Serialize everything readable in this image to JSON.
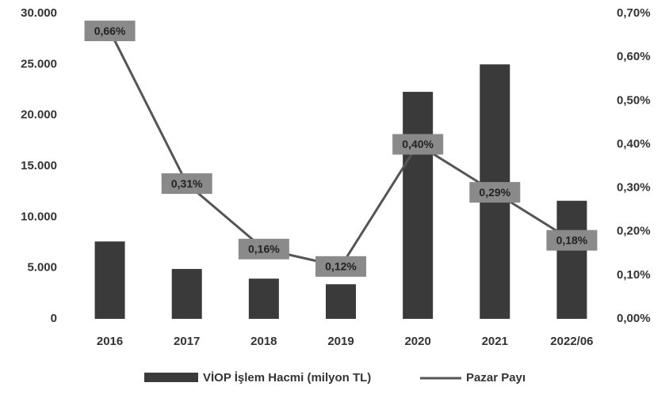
{
  "chart_data": {
    "type": "bar_line",
    "categories": [
      "2016",
      "2017",
      "2018",
      "2019",
      "2020",
      "2021",
      "2022/06"
    ],
    "series": [
      {
        "name": "VİOP İşlem Hacmi (milyon TL)",
        "color": "#3a3a3a",
        "type": "bar",
        "axis": "y",
        "values": [
          7600,
          4900,
          3950,
          3400,
          22300,
          25000,
          11600
        ]
      },
      {
        "name": "Pazar Payı",
        "color": "#555555",
        "type": "line",
        "axis": "y2",
        "values": [
          0.66,
          0.31,
          0.16,
          0.12,
          0.4,
          0.29,
          0.18
        ],
        "value_labels": [
          "0,66%",
          "0,31%",
          "0,16%",
          "0,12%",
          "0,40%",
          "0,29%",
          "0,18%"
        ]
      }
    ],
    "ylim": [
      0,
      30000
    ],
    "yticks": [
      0,
      {
        "value": 5000,
        "label": "5.000"
      },
      {
        "value": 10000,
        "label": "10.000"
      },
      {
        "value": 15000,
        "label": "15.000"
      },
      {
        "value": 20000,
        "label": "20.000"
      },
      {
        "value": 25000,
        "label": "25.000"
      },
      {
        "value": 30000,
        "label": "30.000"
      }
    ],
    "y2lim": [
      0,
      0.7
    ],
    "y2ticks": [
      {
        "value": 0,
        "label": "0,00%"
      },
      {
        "value": 0.1,
        "label": "0,10%"
      },
      {
        "value": 0.2,
        "label": "0,20%"
      },
      {
        "value": 0.3,
        "label": "0,30%"
      },
      {
        "value": 0.4,
        "label": "0,40%"
      },
      {
        "value": 0.5,
        "label": "0,50%"
      },
      {
        "value": 0.6,
        "label": "0,60%"
      },
      {
        "value": 0.7,
        "label": "0,70%"
      }
    ],
    "grid": false,
    "legend": "bottom"
  }
}
